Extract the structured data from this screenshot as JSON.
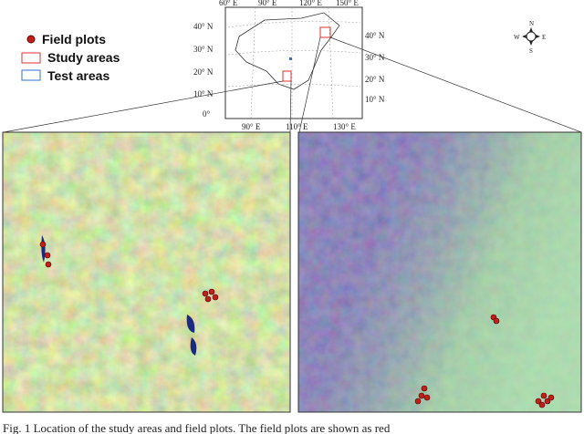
{
  "legend": {
    "items": [
      "Field plots",
      "Study areas",
      "Test areas"
    ]
  },
  "map": {
    "top_ticks": [
      "60° E",
      "90° E",
      "120° E",
      "150° E"
    ],
    "left_ticks": [
      "40° N",
      "30° N",
      "20° N",
      "10° N",
      "0°"
    ],
    "right_ticks": [
      "40° N",
      "30° N",
      "20° N",
      "10° N"
    ],
    "bottom_ticks": [
      "90° E",
      "110° E",
      "130° E"
    ]
  },
  "compass": {
    "north": "N",
    "south": "S",
    "east": "E",
    "west": "W"
  },
  "caption": "Fig. 1 Location of the study areas and field plots. The field plots are shown as red"
}
